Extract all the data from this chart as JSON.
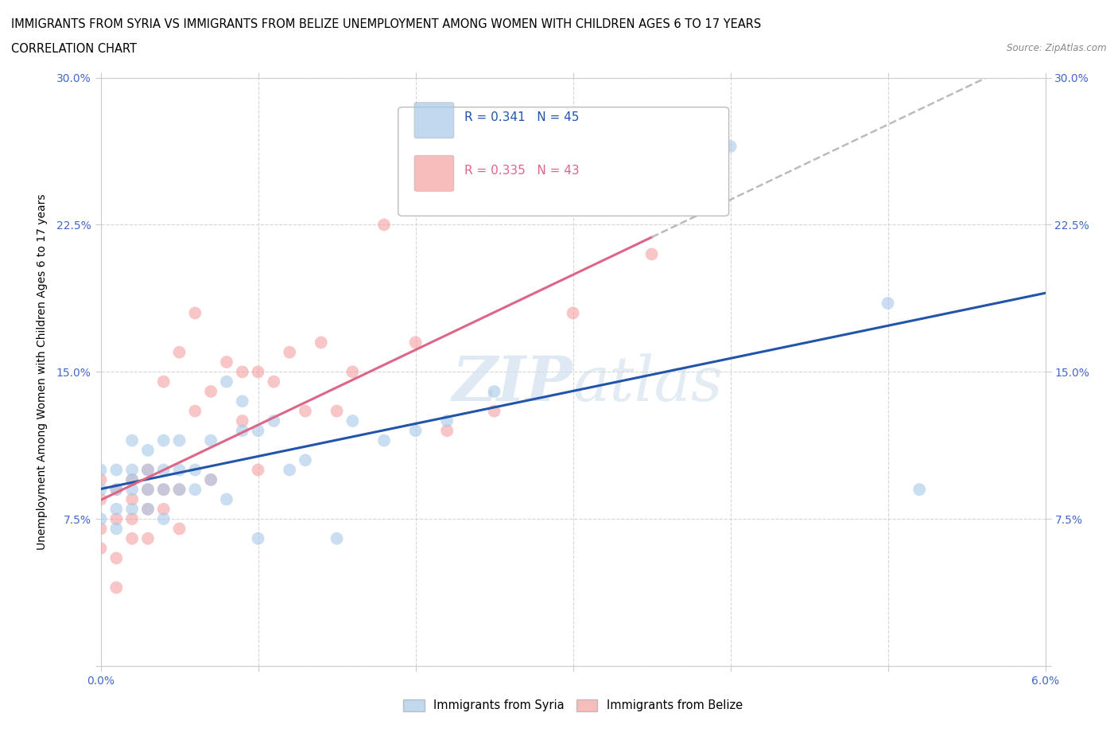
{
  "title_line1": "IMMIGRANTS FROM SYRIA VS IMMIGRANTS FROM BELIZE UNEMPLOYMENT AMONG WOMEN WITH CHILDREN AGES 6 TO 17 YEARS",
  "title_line2": "CORRELATION CHART",
  "source_text": "Source: ZipAtlas.com",
  "ylabel": "Unemployment Among Women with Children Ages 6 to 17 years",
  "xlim": [
    0.0,
    0.06
  ],
  "ylim": [
    0.0,
    0.3
  ],
  "xticks": [
    0.0,
    0.01,
    0.02,
    0.03,
    0.04,
    0.05,
    0.06
  ],
  "xticklabels": [
    "0.0%",
    "",
    "",
    "",
    "",
    "",
    "6.0%"
  ],
  "yticks": [
    0.0,
    0.075,
    0.15,
    0.225,
    0.3
  ],
  "yticklabels": [
    "",
    "7.5%",
    "15.0%",
    "22.5%",
    "30.0%"
  ],
  "syria_color": "#a8c8e8",
  "belize_color": "#f4a0a0",
  "syria_line_color": "#2255aa",
  "belize_line_color": "#dd6688",
  "syria_r": 0.341,
  "syria_n": 45,
  "belize_r": 0.335,
  "belize_n": 43,
  "grid_color": "#cccccc",
  "background_color": "#ffffff",
  "tick_color": "#4466cc",
  "axis_label_fontsize": 10,
  "tick_fontsize": 10,
  "syria_x": [
    0.0,
    0.0,
    0.0,
    0.001,
    0.001,
    0.001,
    0.001,
    0.002,
    0.002,
    0.002,
    0.002,
    0.002,
    0.003,
    0.003,
    0.003,
    0.003,
    0.004,
    0.004,
    0.004,
    0.004,
    0.005,
    0.005,
    0.005,
    0.006,
    0.006,
    0.007,
    0.007,
    0.008,
    0.008,
    0.009,
    0.009,
    0.01,
    0.01,
    0.011,
    0.012,
    0.013,
    0.015,
    0.016,
    0.018,
    0.02,
    0.022,
    0.025,
    0.04,
    0.05,
    0.052
  ],
  "syria_y": [
    0.075,
    0.09,
    0.1,
    0.07,
    0.08,
    0.09,
    0.1,
    0.08,
    0.09,
    0.095,
    0.1,
    0.115,
    0.08,
    0.09,
    0.1,
    0.11,
    0.075,
    0.09,
    0.1,
    0.115,
    0.09,
    0.1,
    0.115,
    0.09,
    0.1,
    0.095,
    0.115,
    0.085,
    0.145,
    0.12,
    0.135,
    0.065,
    0.12,
    0.125,
    0.1,
    0.105,
    0.065,
    0.125,
    0.115,
    0.12,
    0.125,
    0.14,
    0.265,
    0.185,
    0.09
  ],
  "belize_x": [
    0.0,
    0.0,
    0.0,
    0.0,
    0.001,
    0.001,
    0.001,
    0.001,
    0.002,
    0.002,
    0.002,
    0.002,
    0.003,
    0.003,
    0.003,
    0.003,
    0.004,
    0.004,
    0.004,
    0.005,
    0.005,
    0.005,
    0.006,
    0.006,
    0.007,
    0.007,
    0.008,
    0.009,
    0.009,
    0.01,
    0.01,
    0.011,
    0.012,
    0.013,
    0.014,
    0.015,
    0.016,
    0.018,
    0.02,
    0.022,
    0.025,
    0.03,
    0.035
  ],
  "belize_y": [
    0.06,
    0.07,
    0.085,
    0.095,
    0.04,
    0.055,
    0.075,
    0.09,
    0.065,
    0.075,
    0.085,
    0.095,
    0.065,
    0.08,
    0.09,
    0.1,
    0.08,
    0.09,
    0.145,
    0.07,
    0.09,
    0.16,
    0.13,
    0.18,
    0.095,
    0.14,
    0.155,
    0.125,
    0.15,
    0.1,
    0.15,
    0.145,
    0.16,
    0.13,
    0.165,
    0.13,
    0.15,
    0.225,
    0.165,
    0.12,
    0.13,
    0.18,
    0.21
  ]
}
